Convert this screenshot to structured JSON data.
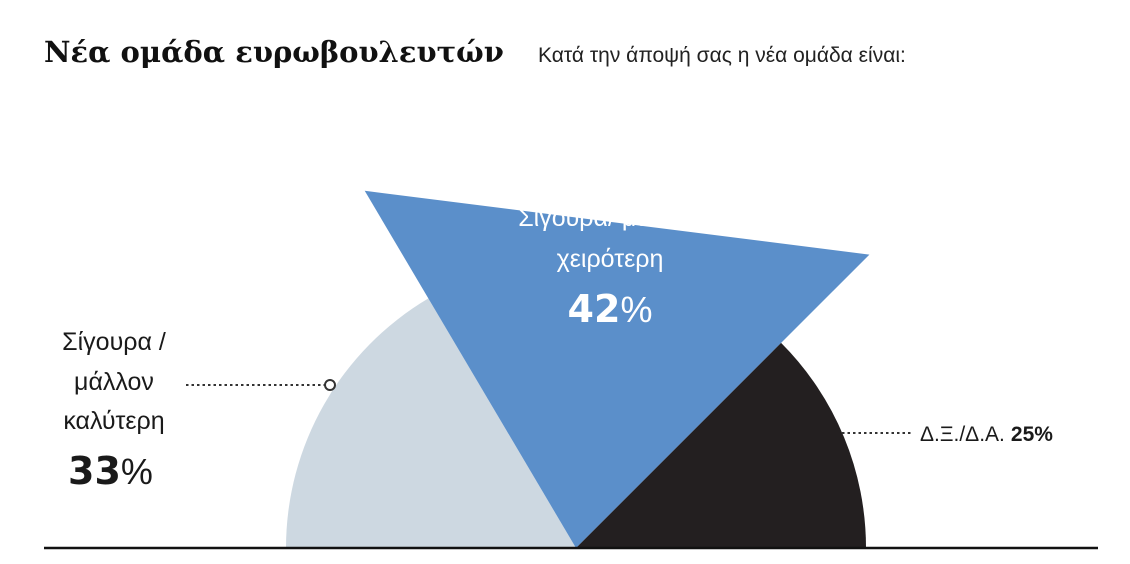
{
  "title": "Νέα ομάδα ευρωβουλευτών",
  "subtitle": "Κατά την άποψή σας η νέα ομάδα είναι:",
  "chart_data": {
    "type": "pie",
    "layout": "semicircle",
    "slices": [
      {
        "label_lines": [
          "Σίγουρα /",
          "μάλλον",
          "καλύτερη"
        ],
        "value": 33,
        "value_text": "33",
        "percent_sign": "%",
        "color": "#cdd8e1"
      },
      {
        "label_lines": [
          "Σίγουρα/ μάλλον",
          "χειρότερη"
        ],
        "value": 42,
        "value_text": "42",
        "percent_sign": "%",
        "color": "#5b8fca",
        "exploded": true
      },
      {
        "label": "Δ.Ξ./Δ.Α.",
        "value": 25,
        "value_text": "25%",
        "color": "#231f20"
      }
    ]
  }
}
